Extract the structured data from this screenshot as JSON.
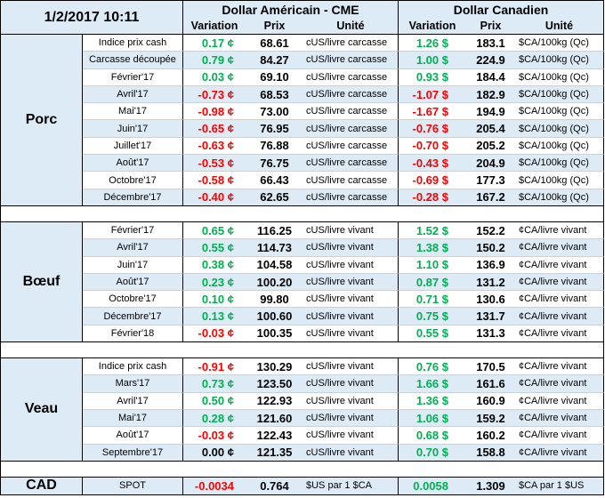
{
  "table": {
    "timestamp": "1/2/2017 10:11",
    "us_group": "Dollar Américain - CME",
    "ca_group": "Dollar Canadien",
    "columns": {
      "variation": "Variation",
      "price": "Prix",
      "unit": "Unité"
    },
    "sections": [
      {
        "name": "Porc",
        "rows": [
          {
            "contract": "Indice prix cash",
            "us_var": "0.17 ¢",
            "us_price": "68.61",
            "us_unit": "cUS/livre carcasse",
            "ca_var": "1.26 $",
            "ca_price": "183.1",
            "ca_unit": "$CA/100kg (Qc)"
          },
          {
            "contract": "Carcasse découpée",
            "us_var": "0.79 ¢",
            "us_price": "84.27",
            "us_unit": "cUS/livre carcasse",
            "ca_var": "1.00 $",
            "ca_price": "224.9",
            "ca_unit": "$CA/100kg (Qc)"
          },
          {
            "contract": "Février'17",
            "us_var": "0.03 ¢",
            "us_price": "69.10",
            "us_unit": "cUS/livre carcasse",
            "ca_var": "0.93 $",
            "ca_price": "184.4",
            "ca_unit": "$CA/100kg (Qc)"
          },
          {
            "contract": "Avril'17",
            "us_var": "-0.73 ¢",
            "us_price": "68.53",
            "us_unit": "cUS/livre carcasse",
            "ca_var": "-1.07 $",
            "ca_price": "182.9",
            "ca_unit": "$CA/100kg (Qc)"
          },
          {
            "contract": "Mai'17",
            "us_var": "-0.98 ¢",
            "us_price": "73.00",
            "us_unit": "cUS/livre carcasse",
            "ca_var": "-1.67 $",
            "ca_price": "194.9",
            "ca_unit": "$CA/100kg (Qc)"
          },
          {
            "contract": "Juin'17",
            "us_var": "-0.65 ¢",
            "us_price": "76.95",
            "us_unit": "cUS/livre carcasse",
            "ca_var": "-0.76 $",
            "ca_price": "205.4",
            "ca_unit": "$CA/100kg (Qc)"
          },
          {
            "contract": "Juillet'17",
            "us_var": "-0.63 ¢",
            "us_price": "76.88",
            "us_unit": "cUS/livre carcasse",
            "ca_var": "-0.70 $",
            "ca_price": "205.2",
            "ca_unit": "$CA/100kg (Qc)"
          },
          {
            "contract": "Août'17",
            "us_var": "-0.53 ¢",
            "us_price": "76.75",
            "us_unit": "cUS/livre carcasse",
            "ca_var": "-0.43 $",
            "ca_price": "204.9",
            "ca_unit": "$CA/100kg (Qc)"
          },
          {
            "contract": "Octobre'17",
            "us_var": "-0.58 ¢",
            "us_price": "66.43",
            "us_unit": "cUS/livre carcasse",
            "ca_var": "-0.69 $",
            "ca_price": "177.3",
            "ca_unit": "$CA/100kg (Qc)"
          },
          {
            "contract": "Décembre'17",
            "us_var": "-0.40 ¢",
            "us_price": "62.65",
            "us_unit": "cUS/livre carcasse",
            "ca_var": "-0.28 $",
            "ca_price": "167.2",
            "ca_unit": "$CA/100kg (Qc)"
          }
        ]
      },
      {
        "name": "Bœuf",
        "rows": [
          {
            "contract": "Février'17",
            "us_var": "0.65 ¢",
            "us_price": "116.25",
            "us_unit": "cUS/livre vivant",
            "ca_var": "1.52 $",
            "ca_price": "152.2",
            "ca_unit": "¢CA/livre vivant"
          },
          {
            "contract": "Avril'17",
            "us_var": "0.55 ¢",
            "us_price": "114.73",
            "us_unit": "cUS/livre vivant",
            "ca_var": "1.38 $",
            "ca_price": "150.2",
            "ca_unit": "¢CA/livre vivant"
          },
          {
            "contract": "Juin'17",
            "us_var": "0.38 ¢",
            "us_price": "104.58",
            "us_unit": "cUS/livre vivant",
            "ca_var": "1.10 $",
            "ca_price": "136.9",
            "ca_unit": "¢CA/livre vivant"
          },
          {
            "contract": "Août'17",
            "us_var": "0.23 ¢",
            "us_price": "100.20",
            "us_unit": "cUS/livre vivant",
            "ca_var": "0.87 $",
            "ca_price": "131.2",
            "ca_unit": "¢CA/livre vivant"
          },
          {
            "contract": "Octobre'17",
            "us_var": "0.10 ¢",
            "us_price": "99.80",
            "us_unit": "cUS/livre vivant",
            "ca_var": "0.71 $",
            "ca_price": "130.6",
            "ca_unit": "¢CA/livre vivant"
          },
          {
            "contract": "Décembre'17",
            "us_var": "0.13 ¢",
            "us_price": "100.60",
            "us_unit": "cUS/livre vivant",
            "ca_var": "0.75 $",
            "ca_price": "131.7",
            "ca_unit": "¢CA/livre vivant"
          },
          {
            "contract": "Février'18",
            "us_var": "-0.03 ¢",
            "us_price": "100.35",
            "us_unit": "cUS/livre vivant",
            "ca_var": "0.55 $",
            "ca_price": "131.3",
            "ca_unit": "¢CA/livre vivant"
          }
        ]
      },
      {
        "name": "Veau",
        "rows": [
          {
            "contract": "Indice prix cash",
            "us_var": "-0.91 ¢",
            "us_price": "130.29",
            "us_unit": "cUS/livre vivant",
            "ca_var": "0.76 $",
            "ca_price": "170.5",
            "ca_unit": "¢CA/livre vivant"
          },
          {
            "contract": "Mars'17",
            "us_var": "0.73 ¢",
            "us_price": "123.50",
            "us_unit": "cUS/livre vivant",
            "ca_var": "1.66 $",
            "ca_price": "161.6",
            "ca_unit": "¢CA/livre vivant"
          },
          {
            "contract": "Avril'17",
            "us_var": "0.50 ¢",
            "us_price": "122.93",
            "us_unit": "cUS/livre vivant",
            "ca_var": "1.36 $",
            "ca_price": "160.9",
            "ca_unit": "¢CA/livre vivant"
          },
          {
            "contract": "Mai'17",
            "us_var": "0.28 ¢",
            "us_price": "121.60",
            "us_unit": "cUS/livre vivant",
            "ca_var": "1.06 $",
            "ca_price": "159.2",
            "ca_unit": "¢CA/livre vivant"
          },
          {
            "contract": "Août'17",
            "us_var": "-0.03 ¢",
            "us_price": "122.43",
            "us_unit": "cUS/livre vivant",
            "ca_var": "0.68 $",
            "ca_price": "160.2",
            "ca_unit": "¢CA/livre vivant"
          },
          {
            "contract": "Septembre'17",
            "us_var": "0.00 ¢",
            "us_price": "121.35",
            "us_unit": "cUS/livre vivant",
            "ca_var": "0.70 $",
            "ca_price": "158.8",
            "ca_unit": "¢CA/livre vivant"
          }
        ]
      }
    ],
    "currency": {
      "label": "CAD",
      "contract": "SPOT",
      "us_var": "-0.0034",
      "us_price": "0.764",
      "us_unit": "$US par 1 $CA",
      "ca_var": "0.0058",
      "ca_price": "1.309",
      "ca_unit": "$CA par 1 $US"
    }
  },
  "colors": {
    "band": "#DDEBF7",
    "positive": "#00B050",
    "negative": "#FF0000",
    "neutral": "#000000"
  }
}
